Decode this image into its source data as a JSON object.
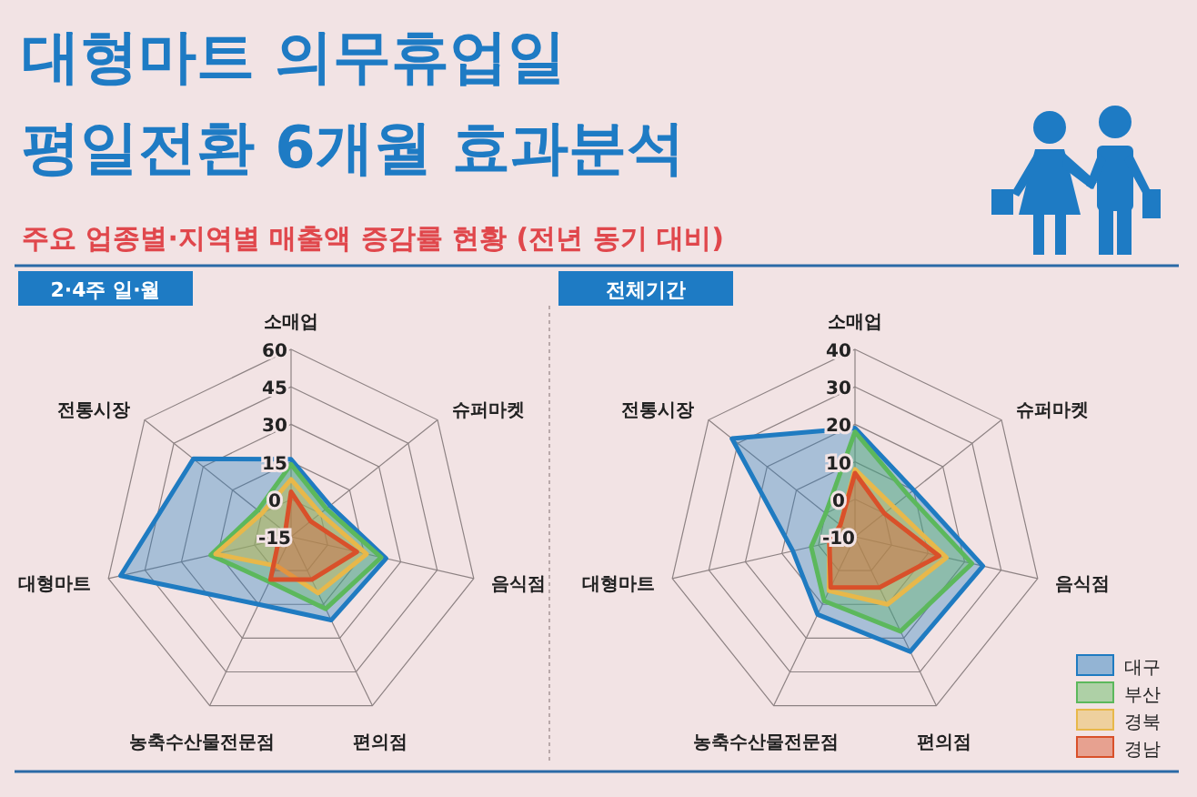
{
  "chart_data": [
    {
      "type": "radar",
      "title": "2·4주 일·월",
      "annotations": [
        "대형마트 의무휴업일",
        "평일전환 6개월 효과분석",
        "주요 업종별·지역별 매출액 증감률 현황 (전년 동기 대비)"
      ],
      "categories": [
        "소매업",
        "슈퍼마켓",
        "음식점",
        "편의점",
        "농축수산물전문점",
        "대형마트",
        "전통시장"
      ],
      "ylim": [
        -15,
        60
      ],
      "yticks": [
        -15,
        0,
        15,
        30,
        45,
        60
      ],
      "grid": true,
      "series": [
        {
          "color": "#1f7bc1",
          "values": [
            16,
            5,
            24,
            22,
            15,
            55,
            35
          ]
        },
        {
          "color": "#5cb85c",
          "values": [
            14,
            3,
            22,
            17,
            5,
            18,
            2
          ]
        },
        {
          "color": "#e8b84a",
          "values": [
            8,
            0,
            16,
            10,
            -2,
            16,
            0
          ]
        },
        {
          "color": "#d9502a",
          "values": [
            3,
            -5,
            12,
            4,
            4,
            -10,
            -12
          ]
        }
      ]
    },
    {
      "type": "radar",
      "title": "전체기간",
      "categories": [
        "소매업",
        "슈퍼마켓",
        "음식점",
        "편의점",
        "농축수산물전문점",
        "대형마트",
        "전통시장"
      ],
      "ylim": [
        -10,
        40
      ],
      "yticks": [
        -10,
        0,
        10,
        20,
        30,
        40
      ],
      "grid": true,
      "legend": "bottom right",
      "series": [
        {
          "name": "대구",
          "color": "#1f7bc1",
          "values": [
            19,
            10,
            25,
            24,
            13,
            7,
            32
          ]
        },
        {
          "name": "부산",
          "color": "#5cb85c",
          "values": [
            18,
            8,
            22,
            18,
            9,
            2,
            0
          ]
        },
        {
          "name": "경북",
          "color": "#e8b84a",
          "values": [
            8,
            3,
            15,
            10,
            6,
            -3,
            -5
          ]
        },
        {
          "name": "경남",
          "color": "#d9502a",
          "values": [
            7,
            0,
            13,
            5,
            5,
            -3,
            -5
          ]
        }
      ]
    }
  ]
}
